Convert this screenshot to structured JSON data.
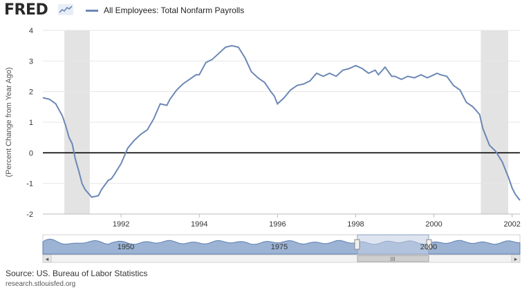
{
  "header": {
    "logo_text": "FRED",
    "series_label": "All Employees: Total Nonfarm Payrolls",
    "series_color": "#6b87b5"
  },
  "footer": {
    "source": "Source: US. Bureau of Labor Statistics",
    "site": "research.stlouisfed.org"
  },
  "navigator": {
    "labels": [
      "1950",
      "1975",
      "2000"
    ],
    "scroll_grip": "III",
    "left_arrow": "◂",
    "right_arrow": "▸"
  },
  "chart_data": {
    "type": "line",
    "ylabel": "(Percent Change from Year Ago)",
    "xlabel": "",
    "title": "",
    "xlim": [
      1990.0,
      2002.2
    ],
    "ylim": [
      -2,
      4
    ],
    "y_ticks": [
      -2,
      -1,
      0,
      1,
      2,
      3,
      4
    ],
    "x_ticks": [
      1992,
      1994,
      1996,
      1998,
      2000,
      2002
    ],
    "grid": "horizontal",
    "legend": "top-left",
    "recession_bands": [
      [
        1990.55,
        1991.2
      ],
      [
        2001.2,
        2001.9
      ]
    ],
    "zero_line": 0,
    "series": [
      {
        "name": "All Employees: Total Nonfarm Payrolls",
        "x": [
          1990.0,
          1990.17,
          1990.33,
          1990.5,
          1990.58,
          1990.67,
          1990.75,
          1990.83,
          1990.92,
          1991.0,
          1991.08,
          1991.25,
          1991.42,
          1991.5,
          1991.67,
          1991.75,
          1991.83,
          1992.0,
          1992.17,
          1992.33,
          1992.5,
          1992.67,
          1992.83,
          1993.0,
          1993.17,
          1993.25,
          1993.42,
          1993.58,
          1993.75,
          1993.92,
          1994.0,
          1994.17,
          1994.33,
          1994.5,
          1994.67,
          1994.83,
          1995.0,
          1995.17,
          1995.33,
          1995.5,
          1995.67,
          1995.83,
          1995.92,
          1996.0,
          1996.17,
          1996.33,
          1996.5,
          1996.67,
          1996.83,
          1997.0,
          1997.17,
          1997.33,
          1997.5,
          1997.67,
          1997.83,
          1998.0,
          1998.17,
          1998.33,
          1998.5,
          1998.58,
          1998.75,
          1998.92,
          1999.0,
          1999.17,
          1999.33,
          1999.5,
          1999.67,
          1999.83,
          2000.0,
          2000.08,
          2000.17,
          2000.33,
          2000.5,
          2000.67,
          2000.83,
          2001.0,
          2001.17,
          2001.25,
          2001.42,
          2001.58,
          2001.75,
          2001.92,
          2002.0,
          2002.08,
          2002.2
        ],
        "values": [
          1.8,
          1.75,
          1.6,
          1.2,
          0.9,
          0.5,
          0.3,
          -0.2,
          -0.6,
          -1.0,
          -1.2,
          -1.45,
          -1.4,
          -1.2,
          -0.9,
          -0.85,
          -0.7,
          -0.35,
          0.15,
          0.4,
          0.6,
          0.75,
          1.1,
          1.6,
          1.55,
          1.75,
          2.05,
          2.25,
          2.4,
          2.55,
          2.55,
          2.95,
          3.05,
          3.25,
          3.45,
          3.5,
          3.45,
          3.1,
          2.65,
          2.45,
          2.3,
          2.0,
          1.85,
          1.6,
          1.8,
          2.05,
          2.2,
          2.25,
          2.35,
          2.6,
          2.5,
          2.6,
          2.5,
          2.7,
          2.75,
          2.85,
          2.75,
          2.6,
          2.7,
          2.55,
          2.8,
          2.5,
          2.5,
          2.4,
          2.5,
          2.45,
          2.55,
          2.45,
          2.55,
          2.6,
          2.55,
          2.5,
          2.2,
          2.05,
          1.65,
          1.5,
          1.25,
          0.8,
          0.25,
          0.05,
          -0.3,
          -0.85,
          -1.15,
          -1.35,
          -1.55
        ]
      }
    ]
  }
}
